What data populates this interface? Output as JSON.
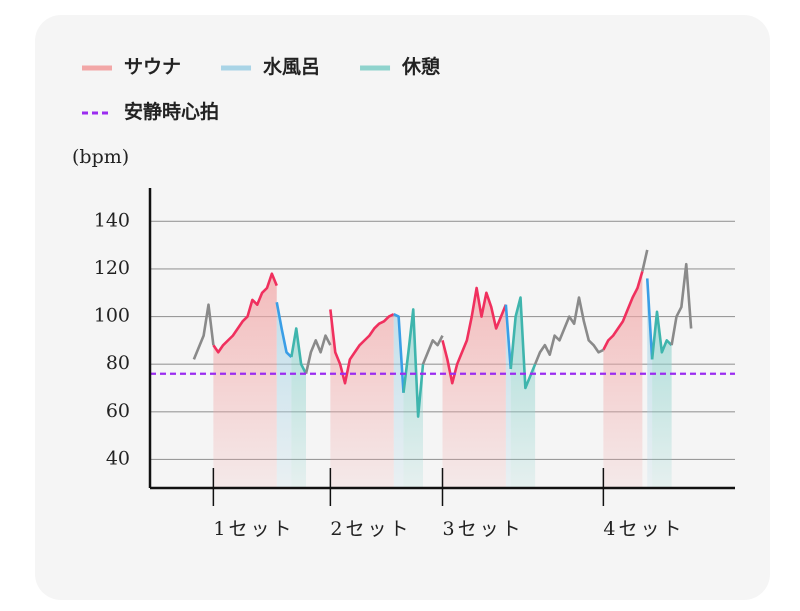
{
  "chart_data": {
    "type": "line",
    "y_label": "(bpm)",
    "xlim": [
      0,
      120
    ],
    "xticks": [
      {
        "value": 13,
        "label": "1セット"
      },
      {
        "value": 37,
        "label": "2セット"
      },
      {
        "value": 60,
        "label": "3セット"
      },
      {
        "value": 93,
        "label": "4セット"
      }
    ],
    "ylim": [
      28,
      154
    ],
    "yticks": [
      40,
      60,
      80,
      100,
      120,
      140
    ],
    "grid": true,
    "reference": {
      "name": "安静時心拍",
      "value": 76,
      "color": "#9b2cf0"
    },
    "series": [
      {
        "color": "#8a8a8a",
        "x": [
          9,
          10,
          11,
          12,
          13,
          null,
          32,
          33,
          34,
          35,
          36,
          37,
          null,
          56,
          57,
          58,
          59,
          60,
          null,
          79,
          80,
          81,
          82,
          83,
          84,
          85,
          86,
          87,
          88,
          89,
          90,
          91,
          92,
          93,
          null,
          101,
          102,
          null,
          107,
          108,
          109,
          110,
          111
        ],
        "values": [
          82,
          87,
          92,
          105,
          88,
          null,
          76,
          85,
          90,
          85,
          92,
          88,
          null,
          80,
          85,
          90,
          88,
          92,
          null,
          80,
          85,
          88,
          84,
          92,
          90,
          95,
          100,
          97,
          108,
          98,
          90,
          88,
          85,
          86,
          null,
          119,
          128,
          null,
          88,
          100,
          104,
          122,
          95
        ]
      },
      {
        "name": "サウナ",
        "color": "#f0305e",
        "fill": "#f2a7a7",
        "x": [
          13,
          14,
          15,
          16,
          17,
          18,
          19,
          20,
          21,
          22,
          23,
          24,
          25,
          26,
          null,
          37,
          38,
          39,
          40,
          41,
          42,
          43,
          44,
          45,
          46,
          47,
          48,
          49,
          50,
          null,
          60,
          61,
          62,
          63,
          64,
          65,
          66,
          67,
          68,
          69,
          70,
          71,
          72,
          73,
          null,
          93,
          94,
          95,
          96,
          97,
          98,
          99,
          100,
          101
        ],
        "values": [
          88,
          85,
          88,
          90,
          92,
          95,
          98,
          100,
          107,
          105,
          110,
          112,
          118,
          113,
          null,
          103,
          85,
          80,
          72,
          82,
          85,
          88,
          90,
          92,
          95,
          97,
          98,
          100,
          101,
          null,
          90,
          82,
          72,
          80,
          85,
          90,
          100,
          112,
          100,
          110,
          104,
          95,
          100,
          105,
          null,
          86,
          90,
          92,
          95,
          98,
          103,
          108,
          112,
          119
        ]
      },
      {
        "name": "水風呂",
        "color": "#3a9ee6",
        "fill": "#a9d4e6",
        "x": [
          26,
          27,
          28,
          29,
          null,
          50,
          51,
          52,
          null,
          73,
          74,
          null,
          102,
          103
        ],
        "values": [
          106,
          95,
          85,
          83,
          null,
          101,
          100,
          68,
          null,
          105,
          78,
          null,
          116,
          82
        ]
      },
      {
        "name": "休憩",
        "color": "#3fb5ad",
        "fill": "#8fd3cd",
        "x": [
          29,
          30,
          31,
          32,
          null,
          52,
          53,
          54,
          55,
          56,
          null,
          74,
          75,
          76,
          77,
          78,
          79,
          null,
          103,
          104,
          105,
          106,
          107
        ],
        "values": [
          83,
          95,
          80,
          76,
          null,
          68,
          85,
          103,
          58,
          80,
          null,
          78,
          100,
          108,
          70,
          75,
          80,
          null,
          82,
          102,
          85,
          90,
          88
        ]
      }
    ]
  }
}
